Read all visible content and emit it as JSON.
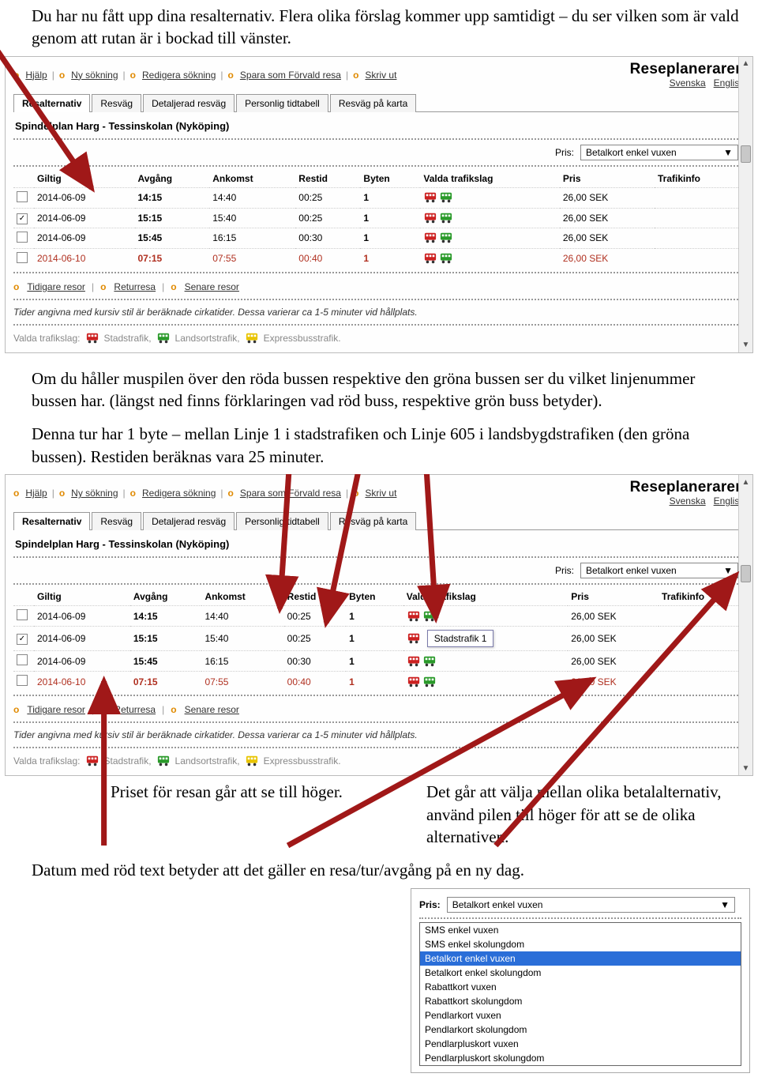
{
  "doc": {
    "p1": "Du har nu fått upp dina resalternativ. Flera olika förslag kommer upp samtidigt – du ser vilken som är vald genom att rutan är i bockad till vänster.",
    "p2a": "Om du håller muspilen över den röda bussen respektive den gröna bussen ser du vilket linjenummer bussen har. (längst ned finns förklaringen vad röd buss, respektive grön buss betyder).",
    "p2b": "Denna tur har 1 byte – mellan Linje 1 i stadstrafiken och Linje 605 i landsbygdstrafiken (den gröna bussen). Restiden beräknas vara 25 minuter.",
    "col_left": "Priset för resan går att se till höger.",
    "col_right": "Det går att välja mellan olika betalalternativ, använd pilen till höger för att se de olika alternativen.",
    "p3": "Datum med röd text betyder att det gäller en resa/tur/avgång på en ny dag."
  },
  "app": {
    "brand": "Reseplaneraren",
    "lang_sv": "Svenska",
    "lang_en": "English",
    "links": {
      "help": "Hjälp",
      "new_search": "Ny sökning",
      "edit_search": "Redigera sökning",
      "save_default": "Spara som Förvald resa",
      "print": "Skriv ut",
      "earlier": "Tidigare resor",
      "return": "Returresa",
      "later": "Senare resor"
    },
    "tabs": {
      "alt": "Resalternativ",
      "route": "Resväg",
      "detail": "Detaljerad resväg",
      "timetable": "Personlig tidtabell",
      "map": "Resväg på karta"
    },
    "route_title": "Spindelplan Harg - Tessinskolan (Nyköping)",
    "pris_label": "Pris:",
    "pris_value": "Betalkort enkel vuxen",
    "headers": {
      "giltig": "Giltig",
      "avgang": "Avgång",
      "ankomst": "Ankomst",
      "restid": "Restid",
      "byten": "Byten",
      "valda": "Valda trafikslag",
      "pris": "Pris",
      "trafik": "Trafikinfo"
    },
    "rows": [
      {
        "checked": false,
        "giltig": "2014-06-09",
        "avgang": "14:15",
        "ankomst": "14:40",
        "restid": "00:25",
        "byten": "1",
        "pris": "26,00 SEK",
        "red": false
      },
      {
        "checked": true,
        "giltig": "2014-06-09",
        "avgang": "15:15",
        "ankomst": "15:40",
        "restid": "00:25",
        "byten": "1",
        "pris": "26,00 SEK",
        "red": false
      },
      {
        "checked": false,
        "giltig": "2014-06-09",
        "avgang": "15:45",
        "ankomst": "16:15",
        "restid": "00:30",
        "byten": "1",
        "pris": "26,00 SEK",
        "red": false
      },
      {
        "checked": false,
        "giltig": "2014-06-10",
        "avgang": "07:15",
        "ankomst": "07:55",
        "restid": "00:40",
        "byten": "1",
        "pris": "26,00 SEK",
        "red": true
      }
    ],
    "note": "Tider angivna med kursiv stil är beräknade cirkatider. Dessa varierar ca 1-5 minuter vid hållplats.",
    "legend_label": "Valda trafikslag:",
    "legend": {
      "stad": "Stadstrafik,",
      "land": "Landsortstrafik,",
      "express": "Expressbusstrafik."
    },
    "tooltip": "Stadstrafik 1",
    "colors": {
      "red_bus": "#cc2020",
      "green_bus": "#2a9a2a",
      "yellow_bus": "#e8c400",
      "accent": "#e08a00",
      "arrow": "#a01818"
    }
  },
  "dropdown": {
    "label": "Pris:",
    "selected": "Betalkort enkel vuxen",
    "options": [
      "SMS enkel vuxen",
      "SMS enkel skolungdom",
      "Betalkort enkel vuxen",
      "Betalkort enkel skolungdom",
      "Rabattkort vuxen",
      "Rabattkort skolungdom",
      "Pendlarkort vuxen",
      "Pendlarkort skolungdom",
      "Pendlarpluskort vuxen",
      "Pendlarpluskort skolungdom"
    ],
    "selected_index": 2
  }
}
